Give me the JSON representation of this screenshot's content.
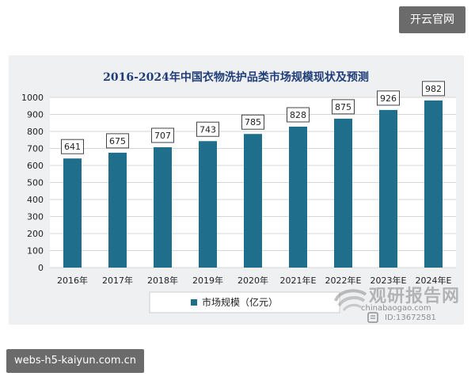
{
  "top_badge": "开云官网",
  "bottom_badge": "webs-h5-kaiyun.com.cn",
  "watermark": {
    "main_text": "观研报告网",
    "url_text": "chinabaogao.com",
    "id_text": "ID:13672581"
  },
  "chart_data": {
    "type": "bar",
    "title": "2016-2024年中国衣物洗护品类市场规模现状及预测",
    "categories": [
      "2016年",
      "2017年",
      "2018年",
      "2019年",
      "2020年",
      "2021年E",
      "2022年E",
      "2023年E",
      "2024年E"
    ],
    "series": [
      {
        "name": "市场规模（亿元）",
        "values": [
          641,
          675,
          707,
          743,
          785,
          828,
          875,
          926,
          982
        ],
        "data_labels": [
          "641",
          "675",
          "707",
          "743",
          "785",
          "828",
          "875",
          "926",
          "982"
        ]
      }
    ],
    "y_ticks": [
      "0",
      "100",
      "200",
      "300",
      "400",
      "500",
      "600",
      "700",
      "800",
      "900",
      "1000"
    ],
    "ylim": [
      0,
      1000
    ],
    "grid": true,
    "legend_position": "bottom-left",
    "colors": {
      "bar": "#1f6e8c",
      "plot_bg": "#ffffff",
      "frame_bg": "#eef0f2",
      "title": "#1f3d78",
      "grid": "#d7d7d7"
    }
  }
}
